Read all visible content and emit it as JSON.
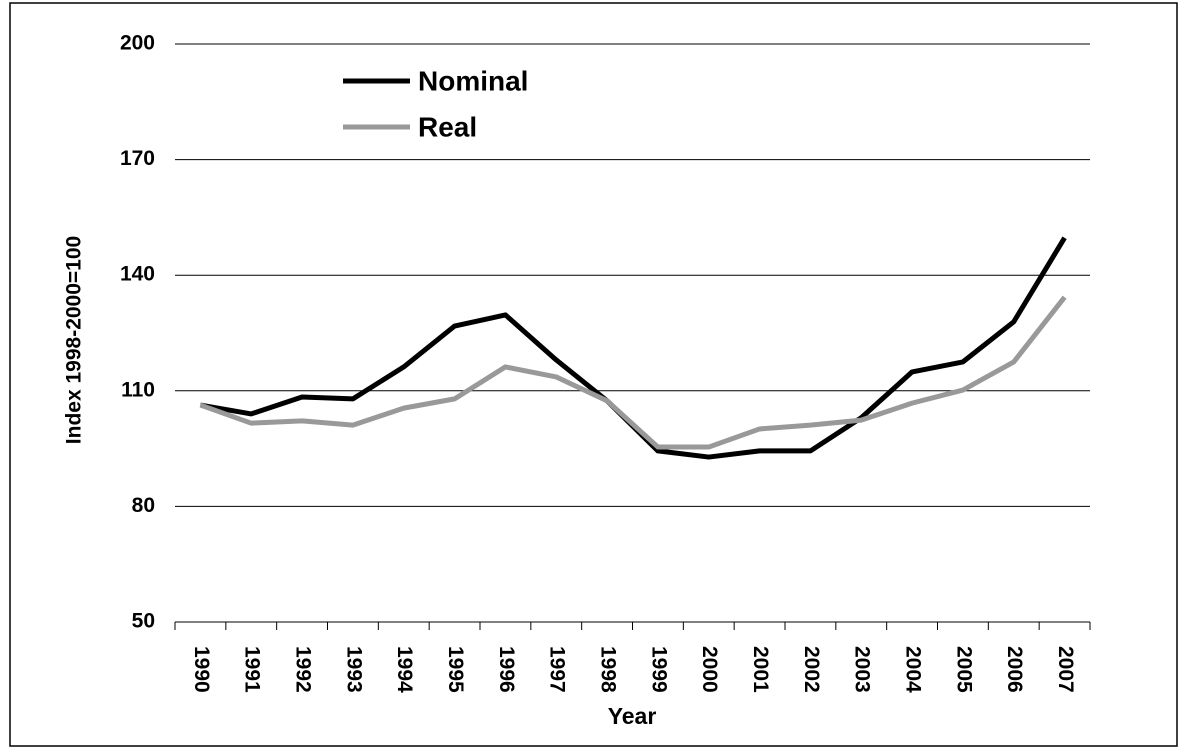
{
  "chart_data": {
    "type": "line",
    "xlabel": "Year",
    "ylabel": "Index 1998-2000=100",
    "categories": [
      "1990",
      "1991",
      "1992",
      "1993",
      "1994",
      "1995",
      "1996",
      "1997",
      "1998",
      "1999",
      "2000",
      "2001",
      "2002",
      "2003",
      "2004",
      "2005",
      "2006",
      "2007"
    ],
    "series": [
      {
        "name": "Nominal",
        "color": "#000000",
        "values": [
          106.3,
          104,
          108.4,
          107.9,
          116.2,
          126.8,
          129.7,
          118,
          107.4,
          94.4,
          92.8,
          94.4,
          94.4,
          103,
          114.9,
          117.5,
          127.9,
          149.7
        ]
      },
      {
        "name": "Real",
        "color": "#999999",
        "values": [
          106.3,
          101.6,
          102.2,
          101.1,
          105.5,
          107.9,
          116.2,
          113.6,
          107.4,
          95.4,
          95.4,
          100.1,
          101.1,
          102.4,
          106.8,
          110.2,
          117.5,
          134.3
        ]
      }
    ],
    "ylim": [
      50,
      200
    ],
    "yticks": [
      50,
      80,
      110,
      140,
      170,
      200
    ],
    "grid": true,
    "legend": "top-left"
  }
}
